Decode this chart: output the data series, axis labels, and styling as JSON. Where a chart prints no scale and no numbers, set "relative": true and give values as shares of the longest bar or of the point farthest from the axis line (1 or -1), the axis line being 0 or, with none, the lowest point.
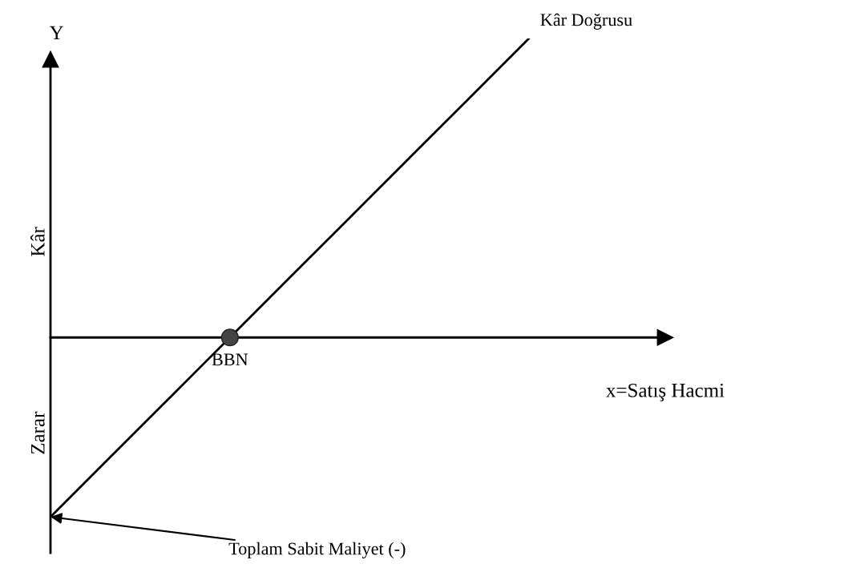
{
  "chart_data": {
    "type": "line",
    "relative": true,
    "xlabel": "x=Satış Hacmi",
    "ylabel": "Y",
    "categories": [
      null,
      null,
      null,
      null,
      null,
      null,
      null,
      null,
      null
    ],
    "series": [
      {
        "name": "Kâr Doğrusu",
        "color": "#000000",
        "values": [
          -0.6,
          -0.4,
          -0.2,
          0,
          0.2,
          0.4,
          0.6,
          0.8,
          1
        ]
      }
    ],
    "annotations": [
      "Kâr",
      "Zarar",
      {
        "text": "BBN",
        "y": 0
      },
      "Toplam Sabit Maliyet (-)"
    ],
    "legend": false,
    "marker": "none",
    "line_style": "solid"
  }
}
